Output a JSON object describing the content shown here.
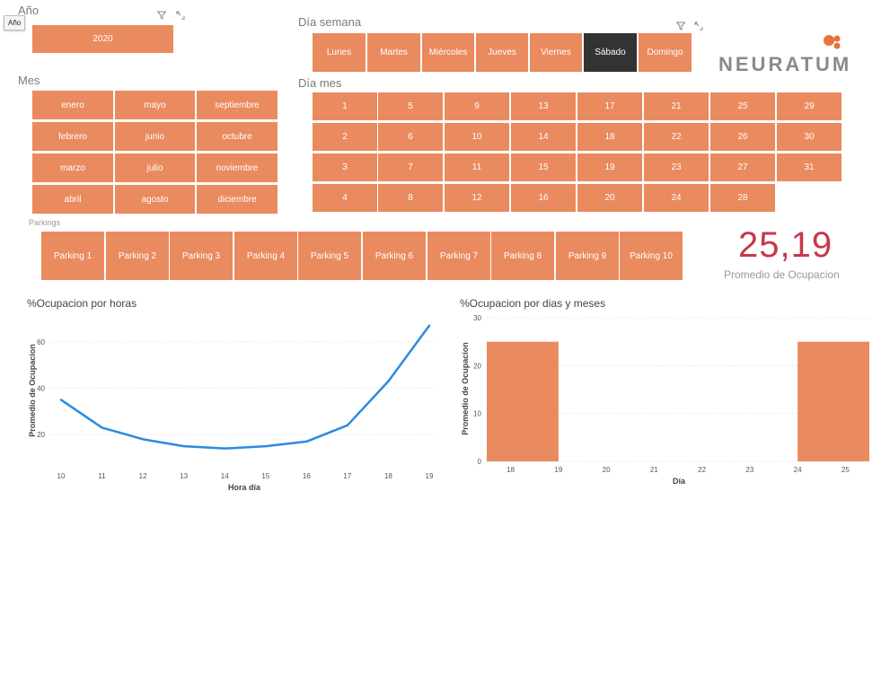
{
  "slicers": {
    "year": {
      "title": "Año",
      "tooltip": "Año",
      "items": [
        "2020"
      ]
    },
    "weekday": {
      "title": "Día semana",
      "items": [
        "Lunes",
        "Martes",
        "Miércoles",
        "Jueves",
        "Viernes",
        "Sábado",
        "Domingo"
      ],
      "selected": "Sábado"
    },
    "month": {
      "title": "Mes",
      "items": [
        "enero",
        "mayo",
        "septiembre",
        "febrero",
        "junio",
        "octubre",
        "marzo",
        "julio",
        "noviembre",
        "abril",
        "agosto",
        "diciembre"
      ]
    },
    "day": {
      "title": "Día mes",
      "items": [
        "1",
        "5",
        "9",
        "13",
        "17",
        "21",
        "25",
        "29",
        "2",
        "6",
        "10",
        "14",
        "18",
        "22",
        "26",
        "30",
        "3",
        "7",
        "11",
        "15",
        "19",
        "23",
        "27",
        "31",
        "4",
        "8",
        "12",
        "16",
        "20",
        "24",
        "28"
      ]
    },
    "parking": {
      "title": "Parkings",
      "items": [
        "Parking 1",
        "Parking 2",
        "Parking 3",
        "Parking 4",
        "Parking 5",
        "Parking 6",
        "Parking 7",
        "Parking 8",
        "Parking 9",
        "Parking 10"
      ]
    }
  },
  "logo": {
    "text": "NEURATUM"
  },
  "kpi": {
    "value": "25,19",
    "label": "Promedio de Ocupacion"
  },
  "colors": {
    "accent": "#ea8a5f",
    "selected": "#333333",
    "kpi": "#c8374a",
    "line": "#2a8be0"
  },
  "chart_data": [
    {
      "type": "line",
      "title": "%Ocupacion por horas",
      "xlabel": "Hora día",
      "ylabel": "Promedio de Ocupacion",
      "x": [
        10,
        11,
        12,
        13,
        14,
        15,
        16,
        17,
        18,
        19
      ],
      "values": [
        35,
        23,
        18,
        15,
        14,
        15,
        17,
        24,
        43,
        67
      ],
      "yticks": [
        20,
        40,
        60
      ],
      "ylim": [
        10,
        70
      ],
      "grid": true
    },
    {
      "type": "bar",
      "title": "%Ocupacion por dias y meses",
      "xlabel": "Día",
      "ylabel": "Promedio de Ocupacion",
      "categories": [
        "18",
        "19",
        "20",
        "21",
        "22",
        "23",
        "24",
        "25"
      ],
      "bars": [
        {
          "from": 17.5,
          "to": 19.0,
          "value": 25
        },
        {
          "from": 24.0,
          "to": 25.5,
          "value": 25
        }
      ],
      "xlim": [
        17.5,
        25.5
      ],
      "yticks": [
        0,
        10,
        20,
        30
      ],
      "ylim": [
        0,
        30
      ],
      "grid": true
    }
  ]
}
